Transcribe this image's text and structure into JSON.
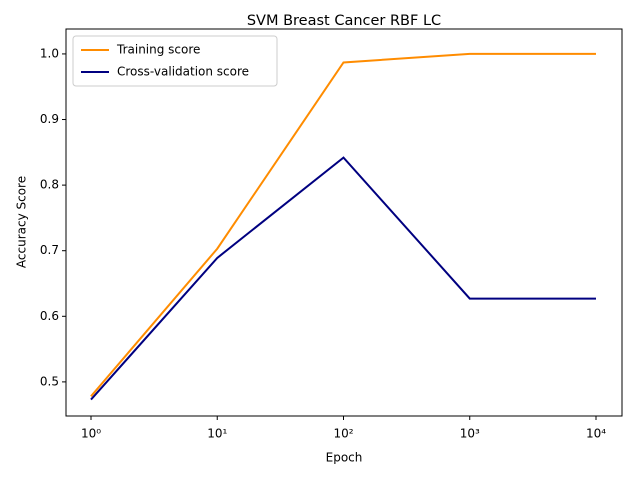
{
  "chart_data": {
    "type": "line",
    "title": "SVM Breast Cancer RBF LC",
    "xlabel": "Epoch",
    "ylabel": "Accuracy Score",
    "x": [
      1,
      10,
      100,
      1000,
      10000
    ],
    "xscale": "log",
    "series": [
      {
        "name": "Training score",
        "color": "#ff8c00",
        "values": [
          0.478,
          0.703,
          0.987,
          1.0,
          1.0
        ]
      },
      {
        "name": "Cross-validation score",
        "color": "#000080",
        "values": [
          0.473,
          0.689,
          0.842,
          0.627,
          0.627
        ]
      }
    ],
    "xlim": [
      0.634,
      16070
    ],
    "xticks": [
      {
        "value": 1,
        "label": "10⁰"
      },
      {
        "value": 10,
        "label": "10¹"
      },
      {
        "value": 100,
        "label": "10²"
      },
      {
        "value": 1000,
        "label": "10³"
      },
      {
        "value": 10000,
        "label": "10⁴"
      }
    ],
    "ylim": [
      0.448,
      1.038
    ],
    "yticks": [
      0.5,
      0.6,
      0.7,
      0.8,
      0.9,
      {
        "value": 1,
        "label": "1.0"
      }
    ],
    "grid": false,
    "legend": "upper-left"
  }
}
